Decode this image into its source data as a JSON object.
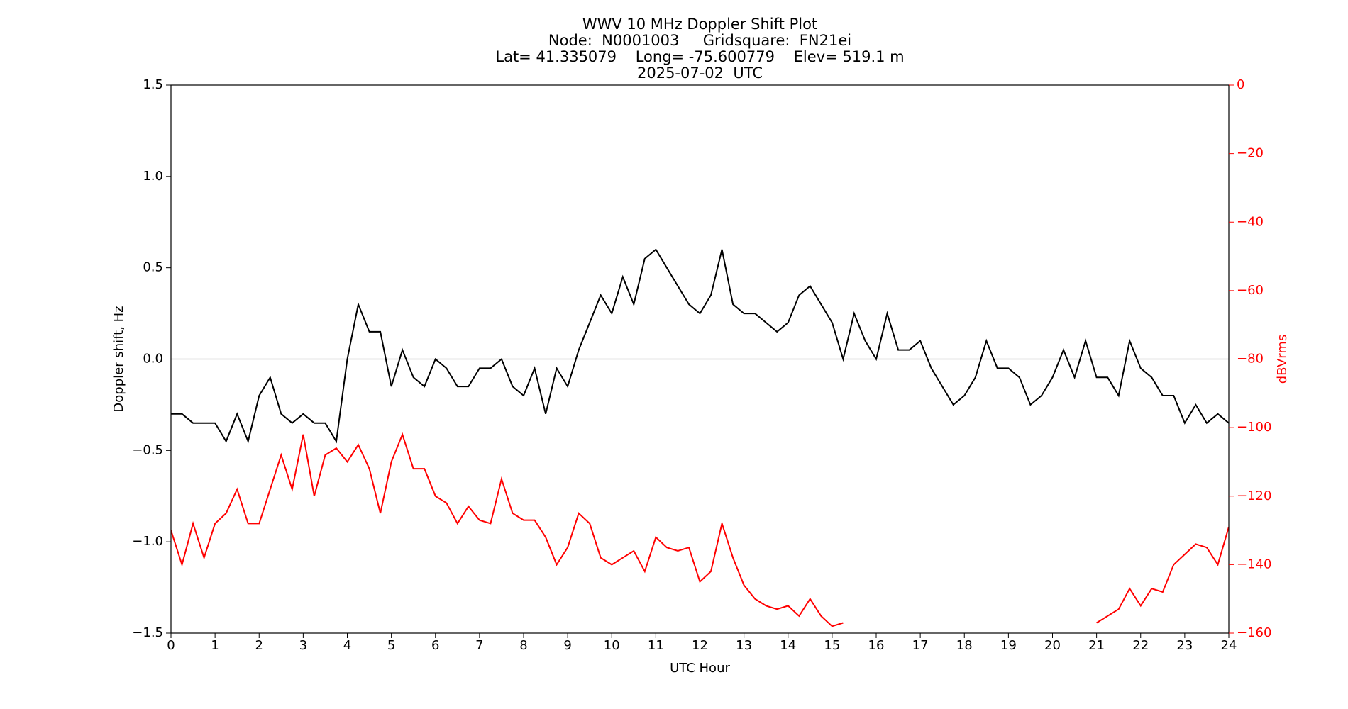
{
  "chart_data": {
    "type": "line",
    "title": [
      "WWV 10 MHz Doppler Shift Plot",
      "Node:  N0001003     Gridsquare:  FN21ei",
      "Lat= 41.335079    Long= -75.600779    Elev= 519.1 m",
      "2025-07-02  UTC"
    ],
    "xlabel": "UTC Hour",
    "ylabel": "Doppler shift, Hz",
    "y2label": "dBVrms",
    "x": [
      0,
      0.25,
      0.5,
      0.75,
      1,
      1.25,
      1.5,
      1.75,
      2,
      2.25,
      2.5,
      2.75,
      3,
      3.25,
      3.5,
      3.75,
      4,
      4.25,
      4.5,
      4.75,
      5,
      5.25,
      5.5,
      5.75,
      6,
      6.25,
      6.5,
      6.75,
      7,
      7.25,
      7.5,
      7.75,
      8,
      8.25,
      8.5,
      8.75,
      9,
      9.25,
      9.5,
      9.75,
      10,
      10.25,
      10.5,
      10.75,
      11,
      11.25,
      11.5,
      11.75,
      12,
      12.25,
      12.5,
      12.75,
      13,
      13.25,
      13.5,
      13.75,
      14,
      14.25,
      14.5,
      14.75,
      15,
      15.25,
      15.5,
      15.75,
      16,
      16.25,
      16.5,
      16.75,
      17,
      17.25,
      17.5,
      17.75,
      18,
      18.25,
      18.5,
      18.75,
      19,
      19.25,
      19.5,
      19.75,
      20,
      20.25,
      20.5,
      20.75,
      21,
      21.25,
      21.5,
      21.75,
      22,
      22.25,
      22.5,
      22.75,
      23,
      23.25,
      23.5,
      23.75,
      24
    ],
    "series": [
      {
        "name": "Doppler shift",
        "color": "#000000",
        "values": [
          -0.3,
          -0.3,
          -0.35,
          -0.35,
          -0.35,
          -0.45,
          -0.3,
          -0.45,
          -0.2,
          -0.1,
          -0.3,
          -0.35,
          -0.3,
          -0.35,
          -0.35,
          -0.45,
          0.0,
          0.3,
          0.15,
          0.15,
          -0.15,
          0.05,
          -0.1,
          -0.15,
          0.0,
          -0.05,
          -0.15,
          -0.15,
          -0.05,
          -0.05,
          0.0,
          -0.15,
          -0.2,
          -0.05,
          -0.3,
          -0.05,
          -0.15,
          0.05,
          0.2,
          0.35,
          0.25,
          0.45,
          0.3,
          0.55,
          0.6,
          0.5,
          0.4,
          0.3,
          0.25,
          0.35,
          0.6,
          0.3,
          0.25,
          0.25,
          0.2,
          0.15,
          0.2,
          0.35,
          0.4,
          0.3,
          0.2,
          0.0,
          0.25,
          0.1,
          0.0,
          0.25,
          0.05,
          0.05,
          0.1,
          -0.05,
          -0.15,
          -0.25,
          -0.2,
          -0.1,
          0.1,
          -0.05,
          -0.05,
          -0.1,
          -0.25,
          -0.2,
          -0.1,
          0.05,
          -0.1,
          0.1,
          -0.1,
          -0.1,
          -0.2,
          0.1,
          -0.05,
          -0.1,
          -0.2,
          -0.2,
          -0.35,
          -0.25,
          -0.35,
          -0.3,
          -0.35
        ]
      },
      {
        "name": "dBVrms",
        "color": "#ff0000",
        "axis": "y2",
        "values": [
          -130,
          -140,
          -128,
          -138,
          -128,
          -125,
          -118,
          -128,
          -128,
          -118,
          -108,
          -118,
          -102,
          -120,
          -108,
          -106,
          -110,
          -105,
          -112,
          -125,
          -110,
          -102,
          -112,
          -112,
          -120,
          -122,
          -128,
          -123,
          -127,
          -128,
          -115,
          -125,
          -127,
          -127,
          -132,
          -140,
          -135,
          -125,
          -128,
          -138,
          -140,
          -138,
          -136,
          -142,
          -132,
          -135,
          -136,
          -135,
          -145,
          -142,
          -128,
          -138,
          -146,
          -150,
          -152,
          -153,
          -152,
          -155,
          -150,
          -155,
          -158,
          -157,
          null,
          null,
          null,
          null,
          null,
          null,
          null,
          null,
          null,
          null,
          null,
          null,
          null,
          null,
          null,
          null,
          null,
          null,
          null,
          null,
          null,
          null,
          -157,
          -155,
          -153,
          -147,
          -152,
          -147,
          -148,
          -140,
          -137,
          -134,
          -135,
          -140,
          -129
        ]
      }
    ],
    "xlim": [
      0,
      24
    ],
    "xticks": [
      0,
      1,
      2,
      3,
      4,
      5,
      6,
      7,
      8,
      9,
      10,
      11,
      12,
      13,
      14,
      15,
      16,
      17,
      18,
      19,
      20,
      21,
      22,
      23,
      24
    ],
    "ylim": [
      -1.5,
      1.5
    ],
    "yticks": [
      {
        "value": -1.5,
        "label": "−1.5"
      },
      {
        "value": -1.0,
        "label": "−1.0"
      },
      {
        "value": -0.5,
        "label": "−0.5"
      },
      {
        "value": 0,
        "label": "0.0"
      },
      {
        "value": 0.5,
        "label": "0.5"
      },
      {
        "value": 1.0,
        "label": "1.0"
      },
      {
        "value": 1.5,
        "label": "1.5"
      }
    ],
    "y2lim": [
      -160,
      0
    ],
    "y2ticks": [
      {
        "value": -160,
        "label": "−160"
      },
      {
        "value": -140,
        "label": "−140"
      },
      {
        "value": -120,
        "label": "−120"
      },
      {
        "value": -100,
        "label": "−100"
      },
      {
        "value": -80,
        "label": "−80"
      },
      {
        "value": -60,
        "label": "−60"
      },
      {
        "value": -40,
        "label": "−40"
      },
      {
        "value": -20,
        "label": "−20"
      },
      0
    ],
    "reference_line": 0,
    "reference_line_color": "#999999"
  }
}
